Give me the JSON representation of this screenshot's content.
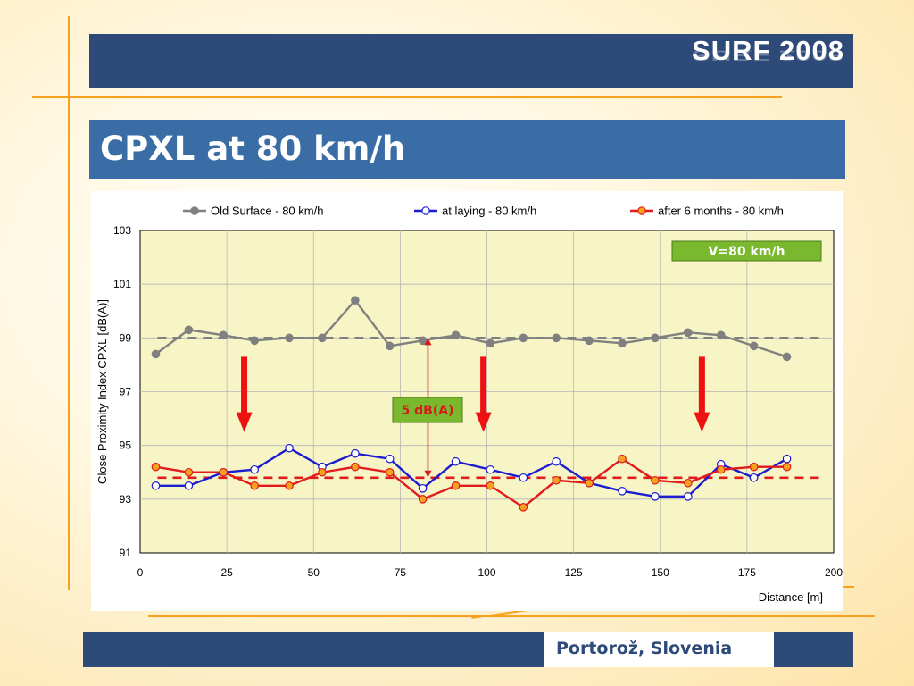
{
  "header": {
    "brand": "SURF 2008"
  },
  "slide": {
    "title": "CPXL at 80 km/h"
  },
  "footer": {
    "location": "Portorož, Slovenia"
  },
  "colors": {
    "navy": "#2e4a78",
    "title_blue": "#3a6da6",
    "accent_orange": "#f6a21e"
  },
  "chart_data": {
    "type": "line",
    "ylabel": "Close Proximity Index CPXL [dB(A)]",
    "xlabel": "Distance [m]",
    "xlim": [
      0,
      200
    ],
    "ylim": [
      91,
      103
    ],
    "xticks": [
      0,
      25,
      50,
      75,
      100,
      125,
      150,
      175,
      200
    ],
    "yticks": [
      91,
      93,
      95,
      97,
      99,
      101,
      103
    ],
    "grid": true,
    "plot_background": "#f7f5c6",
    "legend_position": "top",
    "series": [
      {
        "name": "Old Surface - 80 km/h",
        "color": "#808080",
        "marker_fill": "#808080",
        "x": [
          4.5,
          14,
          24,
          33,
          43,
          52.5,
          62,
          72,
          81.5,
          91,
          101,
          110.5,
          120,
          129.5,
          139,
          148.5,
          158,
          167.5,
          177,
          186.5
        ],
        "values": [
          98.4,
          99.3,
          99.1,
          98.9,
          99.0,
          99.0,
          100.4,
          98.7,
          98.9,
          99.1,
          98.8,
          99.0,
          99.0,
          98.9,
          98.8,
          99.0,
          99.2,
          99.1,
          98.7,
          98.3
        ]
      },
      {
        "name": "at laying - 80 km/h",
        "color": "#1c1cd0",
        "marker_fill": "#ffffff",
        "x": [
          4.5,
          14,
          24,
          33,
          43,
          52.5,
          62,
          72,
          81.5,
          91,
          101,
          110.5,
          120,
          129.5,
          139,
          148.5,
          158,
          167.5,
          177,
          186.5
        ],
        "values": [
          93.5,
          93.5,
          94.0,
          94.1,
          94.9,
          94.2,
          94.7,
          94.5,
          93.4,
          94.4,
          94.1,
          93.8,
          94.4,
          93.6,
          93.3,
          93.1,
          93.1,
          94.3,
          93.8,
          94.5
        ]
      },
      {
        "name": "after 6 months - 80 km/h",
        "color": "#e01c1c",
        "marker_fill": "#f6a21e",
        "x": [
          4.5,
          14,
          24,
          33,
          43,
          52.5,
          62,
          72,
          81.5,
          91,
          101,
          110.5,
          120,
          129.5,
          139,
          148.5,
          158,
          167.5,
          177,
          186.5
        ],
        "values": [
          94.2,
          94.0,
          94.0,
          93.5,
          93.5,
          94.0,
          94.2,
          94.0,
          93.0,
          93.5,
          93.5,
          92.7,
          93.7,
          93.6,
          94.5,
          93.7,
          93.6,
          94.1,
          94.2,
          94.2
        ]
      }
    ],
    "reference_lines": [
      {
        "y": 99.0,
        "color": "#808080",
        "style": "dashed"
      },
      {
        "y": 93.8,
        "color": "#e01c1c",
        "style": "dashed"
      }
    ],
    "annotations": {
      "speed_badge": "V=80 km/h",
      "difference_label": "5 dB(A)",
      "difference_between": [
        99.0,
        93.8
      ],
      "difference_at_x": 83,
      "reduction_arrows_at_x": [
        30,
        99,
        162
      ],
      "reduction_arrow_range": [
        98.3,
        95.5
      ]
    }
  }
}
